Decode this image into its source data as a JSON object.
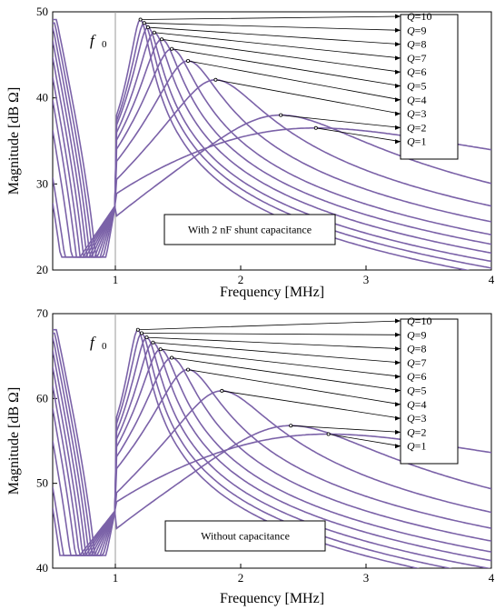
{
  "chart_data": [
    {
      "type": "line",
      "xlabel": "Frequency [MHz]",
      "ylabel": "Magnitude [dB Ω]",
      "xlim": [
        0.5,
        4
      ],
      "ylim": [
        20,
        50
      ],
      "xticks": [
        1,
        2,
        3,
        4
      ],
      "yticks": [
        20,
        30,
        40,
        50
      ],
      "grid": false,
      "color": "#7b62a8",
      "vline_label": "f",
      "vline_label_sub": "0",
      "vline_x": 1,
      "annotation": "With 2 nF shunt capacitance",
      "pointer_labels_side": "right, top",
      "series": [
        {
          "name": "Q=10",
          "peak_x": 1.2,
          "peak_y": 49.1
        },
        {
          "name": "Q=9",
          "peak_x": 1.23,
          "peak_y": 48.7
        },
        {
          "name": "Q=8",
          "peak_x": 1.26,
          "peak_y": 48.2
        },
        {
          "name": "Q=7",
          "peak_x": 1.31,
          "peak_y": 47.6
        },
        {
          "name": "Q=6",
          "peak_x": 1.37,
          "peak_y": 46.8
        },
        {
          "name": "Q=5",
          "peak_x": 1.45,
          "peak_y": 45.7
        },
        {
          "name": "Q=4",
          "peak_x": 1.58,
          "peak_y": 44.3
        },
        {
          "name": "Q=3",
          "peak_x": 1.8,
          "peak_y": 42.1
        },
        {
          "name": "Q=2",
          "peak_x": 2.32,
          "peak_y": 38.0
        },
        {
          "name": "Q=1",
          "peak_x": 2.6,
          "peak_y": 36.5
        }
      ]
    },
    {
      "type": "line",
      "xlabel": "Frequency [MHz]",
      "ylabel": "Magnitude [dB Ω]",
      "xlim": [
        0.5,
        4
      ],
      "ylim": [
        40,
        70
      ],
      "xticks": [
        1,
        2,
        3,
        4
      ],
      "yticks": [
        40,
        50,
        60,
        70
      ],
      "grid": false,
      "color": "#7b62a8",
      "vline_label": "f",
      "vline_label_sub": "0",
      "vline_x": 1,
      "annotation": "Without capacitance",
      "pointer_labels_side": "right, top",
      "series": [
        {
          "name": "Q=10",
          "peak_x": 1.18,
          "peak_y": 68.1
        },
        {
          "name": "Q=9",
          "peak_x": 1.21,
          "peak_y": 67.7
        },
        {
          "name": "Q=8",
          "peak_x": 1.25,
          "peak_y": 67.2
        },
        {
          "name": "Q=7",
          "peak_x": 1.3,
          "peak_y": 66.6
        },
        {
          "name": "Q=6",
          "peak_x": 1.36,
          "peak_y": 65.8
        },
        {
          "name": "Q=5",
          "peak_x": 1.45,
          "peak_y": 64.8
        },
        {
          "name": "Q=4",
          "peak_x": 1.58,
          "peak_y": 63.4
        },
        {
          "name": "Q=3",
          "peak_x": 1.85,
          "peak_y": 60.9
        },
        {
          "name": "Q=2",
          "peak_x": 2.4,
          "peak_y": 56.8
        },
        {
          "name": "Q=1",
          "peak_x": 2.7,
          "peak_y": 55.8
        }
      ]
    }
  ]
}
